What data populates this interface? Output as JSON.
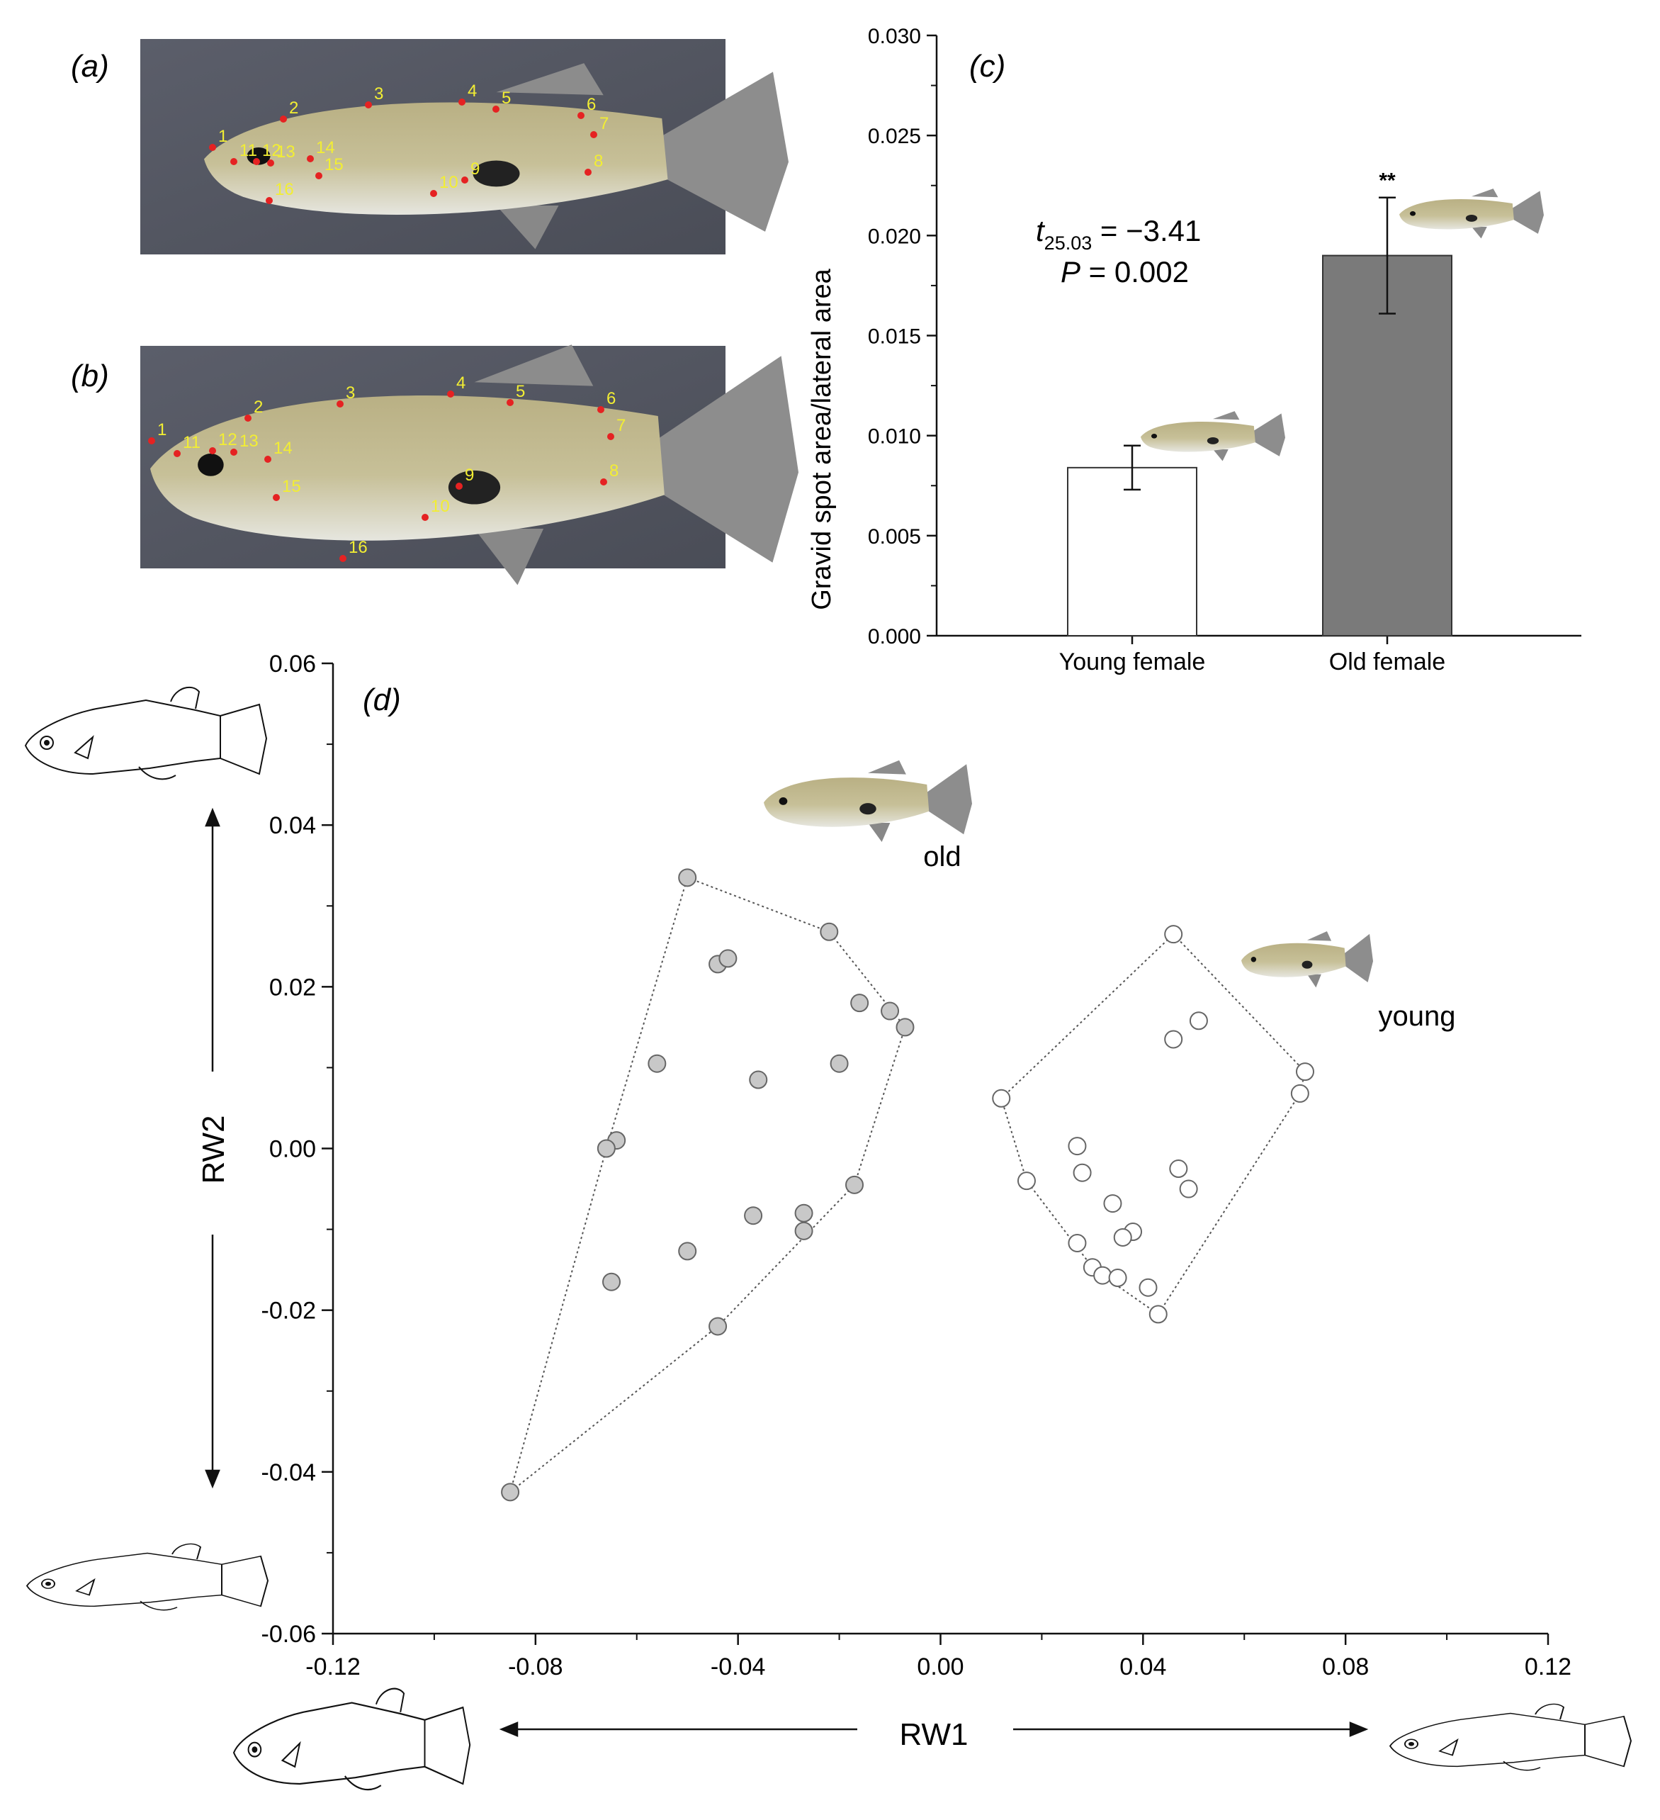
{
  "panels": {
    "a": {
      "label": "a",
      "landmarks": [
        "1",
        "2",
        "3",
        "4",
        "5",
        "6",
        "7",
        "8",
        "9",
        "10",
        "11",
        "12",
        "13",
        "14",
        "15",
        "16"
      ]
    },
    "b": {
      "label": "b",
      "landmarks": [
        "1",
        "2",
        "3",
        "4",
        "5",
        "6",
        "7",
        "8",
        "9",
        "10",
        "11",
        "12",
        "13",
        "14",
        "15",
        "16"
      ]
    },
    "c": {
      "label": "c"
    },
    "d": {
      "label": "d"
    }
  },
  "chart_data": [
    {
      "panel": "c",
      "type": "bar",
      "categories": [
        "Young female",
        "Old female"
      ],
      "values": [
        0.0084,
        0.019
      ],
      "error": [
        0.0011,
        0.0029
      ],
      "bar_colors": [
        "#ffffff",
        "#7a7a7a"
      ],
      "ylabel": "Gravid spot area/lateral area",
      "xlabel": "",
      "ylim": [
        0,
        0.03
      ],
      "yticks": [
        "0.000",
        "0.005",
        "0.010",
        "0.015",
        "0.020",
        "0.025",
        "0.030"
      ],
      "significance": "**",
      "stat_t_symbol": "t",
      "stat_t_sub": "25.03",
      "stat_t_value": " = −3.41",
      "stat_p_symbol": "P",
      "stat_p_value": " = 0.002"
    },
    {
      "panel": "d",
      "type": "scatter",
      "xlabel": "RW1",
      "ylabel": "RW2",
      "xlim": [
        -0.12,
        0.12
      ],
      "ylim": [
        -0.06,
        0.06
      ],
      "xticks": [
        "-0.12",
        "-0.08",
        "-0.04",
        "0.00",
        "0.04",
        "0.08",
        "0.12"
      ],
      "yticks": [
        "0.06",
        "0.04",
        "0.02",
        "0.00",
        "-0.02",
        "-0.04",
        "-0.06"
      ],
      "series": [
        {
          "name": "old",
          "fill": "#c8c8c8",
          "points": [
            [
              -0.05,
              0.0335
            ],
            [
              -0.022,
              0.0268
            ],
            [
              -0.044,
              0.0228
            ],
            [
              -0.042,
              0.0235
            ],
            [
              -0.016,
              0.018
            ],
            [
              -0.01,
              0.017
            ],
            [
              -0.007,
              0.015
            ],
            [
              -0.056,
              0.0105
            ],
            [
              -0.02,
              0.0105
            ],
            [
              -0.036,
              0.0085
            ],
            [
              -0.064,
              0.001
            ],
            [
              -0.066,
              0.0
            ],
            [
              -0.017,
              -0.0045
            ],
            [
              -0.037,
              -0.0083
            ],
            [
              -0.027,
              -0.008
            ],
            [
              -0.027,
              -0.0102
            ],
            [
              -0.05,
              -0.0127
            ],
            [
              -0.065,
              -0.0165
            ],
            [
              -0.044,
              -0.022
            ],
            [
              -0.085,
              -0.0425
            ]
          ]
        },
        {
          "name": "young",
          "fill": "#ffffff",
          "points": [
            [
              0.046,
              0.0265
            ],
            [
              0.051,
              0.0158
            ],
            [
              0.046,
              0.0135
            ],
            [
              0.072,
              0.0095
            ],
            [
              0.071,
              0.0068
            ],
            [
              0.012,
              0.0062
            ],
            [
              0.027,
              0.0003
            ],
            [
              0.028,
              -0.003
            ],
            [
              0.047,
              -0.0025
            ],
            [
              0.049,
              -0.005
            ],
            [
              0.017,
              -0.004
            ],
            [
              0.034,
              -0.0068
            ],
            [
              0.038,
              -0.0103
            ],
            [
              0.036,
              -0.011
            ],
            [
              0.027,
              -0.0117
            ],
            [
              0.03,
              -0.0147
            ],
            [
              0.032,
              -0.0157
            ],
            [
              0.035,
              -0.016
            ],
            [
              0.041,
              -0.0172
            ],
            [
              0.043,
              -0.0205
            ]
          ]
        }
      ]
    }
  ]
}
